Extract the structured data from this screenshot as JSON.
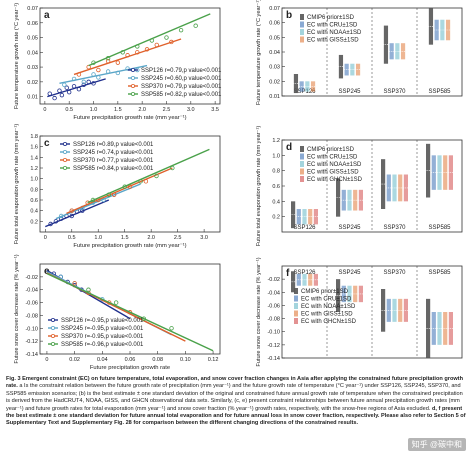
{
  "colors": {
    "ssp126": "#1f2f8c",
    "ssp245": "#5aa6c8",
    "ssp370": "#e0602a",
    "ssp585": "#4aa14a",
    "cmip6": "#555555",
    "cru": "#3a6fb5",
    "noaa": "#66b8c7",
    "giss": "#e07a3a",
    "ghcn": "#d14a4a"
  },
  "chart_data": [
    {
      "id": "a",
      "type": "scatter",
      "panel_label": "a",
      "ylabel": "Future temperature growth rate (°C year⁻¹)",
      "xlabel": "Future precipitation growth rate (mm year⁻¹)",
      "xlim": [
        -0.1,
        3.6
      ],
      "ylim": [
        0.005,
        0.07
      ],
      "xticks": [
        "0",
        "0.5",
        "1.0",
        "1.5",
        "2.0",
        "2.5",
        "3.0",
        "3.5"
      ],
      "yticks": [
        "0.01",
        "0.02",
        "0.03",
        "0.04",
        "0.05",
        "0.06",
        "0.07"
      ],
      "legend_placement": "bottom-right",
      "series": [
        {
          "name": "SSP126 r=0.79,p value<0.001",
          "color_key": "ssp126",
          "x": [
            0.1,
            0.2,
            0.3,
            0.35,
            0.45,
            0.5,
            0.6,
            0.7,
            0.8,
            0.9,
            1.0
          ],
          "y": [
            0.012,
            0.009,
            0.014,
            0.011,
            0.016,
            0.013,
            0.017,
            0.015,
            0.018,
            0.02,
            0.019
          ],
          "fit": [
            [
              0.05,
              0.01
            ],
            [
              1.25,
              0.022
            ]
          ]
        },
        {
          "name": "SSP245 r=0.60,p value<0.001",
          "color_key": "ssp245",
          "x": [
            0.4,
            0.6,
            0.8,
            1.0,
            1.1,
            1.3,
            1.5,
            1.7,
            1.9
          ],
          "y": [
            0.018,
            0.022,
            0.02,
            0.025,
            0.023,
            0.027,
            0.026,
            0.029,
            0.028
          ],
          "fit": [
            [
              0.3,
              0.019
            ],
            [
              2.1,
              0.031
            ]
          ]
        },
        {
          "name": "SSP370 r=0.79,p value<0.001",
          "color_key": "ssp370",
          "x": [
            0.7,
            0.9,
            1.1,
            1.3,
            1.5,
            1.7,
            1.9,
            2.1,
            2.3,
            2.6
          ],
          "y": [
            0.025,
            0.03,
            0.028,
            0.034,
            0.033,
            0.038,
            0.04,
            0.042,
            0.045,
            0.047
          ],
          "fit": [
            [
              0.6,
              0.025
            ],
            [
              2.8,
              0.049
            ]
          ]
        },
        {
          "name": "SSP585 r=0.82,p value<0.001",
          "color_key": "ssp585",
          "x": [
            1.0,
            1.3,
            1.6,
            1.9,
            2.2,
            2.5,
            2.8,
            3.1
          ],
          "y": [
            0.033,
            0.036,
            0.04,
            0.044,
            0.048,
            0.05,
            0.055,
            0.058
          ],
          "fit": [
            [
              0.9,
              0.031
            ],
            [
              3.4,
              0.066
            ]
          ]
        }
      ]
    },
    {
      "id": "b",
      "type": "errorbar",
      "panel_label": "b",
      "ylabel": "Future temperature growth rate (°C year⁻¹)",
      "categories": [
        "SSP126",
        "SSP245",
        "SSP370",
        "SSP585"
      ],
      "ylim": [
        0.01,
        0.07
      ],
      "yticks": [
        "0.01",
        "0.02",
        "0.03",
        "0.04",
        "0.05",
        "0.06",
        "0.07"
      ],
      "legend": [
        "CMIP6 prior±1SD",
        "EC with CRU±1SD",
        "EC with NOAA±1SD",
        "EC with GISS±1SD"
      ],
      "legend_color_keys": [
        "cmip6",
        "cru",
        "noaa",
        "giss"
      ],
      "bars": [
        [
          [
            0.012,
            0.025
          ],
          [
            0.013,
            0.02
          ],
          [
            0.013,
            0.02
          ],
          [
            0.013,
            0.02
          ]
        ],
        [
          [
            0.022,
            0.038
          ],
          [
            0.024,
            0.032
          ],
          [
            0.024,
            0.032
          ],
          [
            0.024,
            0.032
          ]
        ],
        [
          [
            0.032,
            0.058
          ],
          [
            0.035,
            0.046
          ],
          [
            0.035,
            0.046
          ],
          [
            0.035,
            0.046
          ]
        ],
        [
          [
            0.045,
            0.07
          ],
          [
            0.048,
            0.062
          ],
          [
            0.048,
            0.062
          ],
          [
            0.048,
            0.062
          ]
        ]
      ]
    },
    {
      "id": "c",
      "type": "scatter",
      "panel_label": "c",
      "ylabel": "Future total evaporation growth rate (mm year⁻¹)",
      "xlabel": "Future precipitation growth rate (mm year⁻¹)",
      "xlim": [
        -0.1,
        3.3
      ],
      "ylim": [
        0.0,
        1.8
      ],
      "xticks": [
        "0",
        "0.5",
        "1.0",
        "1.5",
        "2.0",
        "2.5",
        "3.0"
      ],
      "yticks": [
        "0.2",
        "0.4",
        "0.6",
        "0.8",
        "1.0",
        "1.2",
        "1.4",
        "1.6",
        "1.8"
      ],
      "legend_placement": "top-left",
      "series": [
        {
          "name": "SSP126 r=0.89,p value<0.001",
          "color_key": "ssp126",
          "x": [
            0.1,
            0.2,
            0.3,
            0.4,
            0.5,
            0.6,
            0.7
          ],
          "y": [
            0.15,
            0.2,
            0.25,
            0.3,
            0.3,
            0.38,
            0.4
          ],
          "fit": [
            [
              0.0,
              0.1
            ],
            [
              1.2,
              0.6
            ]
          ]
        },
        {
          "name": "SSP245 r=0.74,p value<0.001",
          "color_key": "ssp245",
          "x": [
            0.3,
            0.5,
            0.7,
            0.9,
            1.1,
            1.3
          ],
          "y": [
            0.3,
            0.4,
            0.45,
            0.55,
            0.6,
            0.7
          ],
          "fit": [
            [
              0.2,
              0.25
            ],
            [
              1.8,
              0.9
            ]
          ]
        },
        {
          "name": "SSP370 r=0.77,p value<0.001",
          "color_key": "ssp370",
          "x": [
            0.5,
            0.8,
            1.0,
            1.3,
            1.6,
            1.9
          ],
          "y": [
            0.4,
            0.55,
            0.6,
            0.7,
            0.85,
            0.95
          ],
          "fit": [
            [
              0.4,
              0.35
            ],
            [
              2.4,
              1.2
            ]
          ]
        },
        {
          "name": "SSP585 r=0.84,p value<0.001",
          "color_key": "ssp585",
          "x": [
            0.9,
            1.2,
            1.5,
            1.8,
            2.1,
            2.4
          ],
          "y": [
            0.6,
            0.7,
            0.85,
            0.95,
            1.05,
            1.2
          ],
          "fit": [
            [
              0.8,
              0.55
            ],
            [
              3.1,
              1.55
            ]
          ]
        }
      ]
    },
    {
      "id": "d",
      "type": "errorbar",
      "panel_label": "d",
      "ylabel": "Future total evaporation growth rate (mm year⁻¹)",
      "categories": [
        "SSP126",
        "SSP245",
        "SSP370",
        "SSP585"
      ],
      "ylim": [
        0.0,
        1.2
      ],
      "yticks": [
        "0.2",
        "0.4",
        "0.6",
        "0.8",
        "1.0",
        "1.2"
      ],
      "legend": [
        "CMIP6 prior±1SD",
        "EC with CRU±1SD",
        "EC with NOAA±1SD",
        "EC with GISS±1SD",
        "EC with GHCN±1SD"
      ],
      "legend_color_keys": [
        "cmip6",
        "cru",
        "noaa",
        "giss",
        "ghcn"
      ],
      "bars": [
        [
          [
            0.05,
            0.4
          ],
          [
            0.1,
            0.3
          ],
          [
            0.1,
            0.3
          ],
          [
            0.1,
            0.3
          ],
          [
            0.1,
            0.3
          ]
        ],
        [
          [
            0.2,
            0.7
          ],
          [
            0.28,
            0.55
          ],
          [
            0.28,
            0.55
          ],
          [
            0.28,
            0.55
          ],
          [
            0.28,
            0.55
          ]
        ],
        [
          [
            0.3,
            0.95
          ],
          [
            0.4,
            0.75
          ],
          [
            0.4,
            0.75
          ],
          [
            0.4,
            0.75
          ],
          [
            0.4,
            0.75
          ]
        ],
        [
          [
            0.45,
            1.15
          ],
          [
            0.55,
            1.0
          ],
          [
            0.55,
            1.0
          ],
          [
            0.55,
            1.0
          ],
          [
            0.55,
            1.0
          ]
        ]
      ]
    },
    {
      "id": "e",
      "type": "scatter",
      "panel_label": "e",
      "ylabel": "Future snow cover decrease rate (% year⁻¹)",
      "xlabel": "Future precipitation growth rate",
      "xlim": [
        -0.005,
        0.125
      ],
      "ylim": [
        -0.14,
        0.0
      ],
      "xticks": [
        "0",
        "0.02",
        "0.04",
        "0.06",
        "0.08",
        "0.10",
        "0.12"
      ],
      "yticks": [
        "-0.02",
        "-0.04",
        "-0.06",
        "-0.08",
        "-0.10",
        "-0.12",
        "-0.14"
      ],
      "legend_placement": "bottom-left",
      "series": [
        {
          "name": "SSP126 r=-0.95,p value<0.001",
          "color_key": "ssp126",
          "x": [
            0.005,
            0.01,
            0.015,
            0.02,
            0.025
          ],
          "y": [
            -0.015,
            -0.02,
            -0.028,
            -0.033,
            -0.04
          ],
          "fit": [
            [
              0.0,
              -0.01
            ],
            [
              0.06,
              -0.085
            ]
          ]
        },
        {
          "name": "SSP245 r=-0.95,p value<0.001",
          "color_key": "ssp245",
          "x": [
            0.01,
            0.02,
            0.03,
            0.04
          ],
          "y": [
            -0.02,
            -0.03,
            -0.045,
            -0.055
          ],
          "fit": [
            [
              0.0,
              -0.012
            ],
            [
              0.09,
              -0.11
            ]
          ]
        },
        {
          "name": "SSP370 r=-0.95,p value<0.001",
          "color_key": "ssp370",
          "x": [
            0.02,
            0.03,
            0.045,
            0.06
          ],
          "y": [
            -0.03,
            -0.045,
            -0.06,
            -0.075
          ],
          "fit": [
            [
              0.0,
              -0.014
            ],
            [
              0.1,
              -0.12
            ]
          ]
        },
        {
          "name": "SSP585 r=-0.96,p value<0.001",
          "color_key": "ssp585",
          "x": [
            0.03,
            0.05,
            0.07,
            0.09
          ],
          "y": [
            -0.04,
            -0.06,
            -0.085,
            -0.1
          ],
          "fit": [
            [
              0.0,
              -0.015
            ],
            [
              0.12,
              -0.135
            ]
          ]
        }
      ]
    },
    {
      "id": "f",
      "type": "errorbar",
      "panel_label": "f",
      "ylabel": "Future snow cover decrease rate (% year⁻¹)",
      "categories": [
        "SSP126",
        "SSP245",
        "SSP370",
        "SSP585"
      ],
      "ylim": [
        -0.14,
        0.0
      ],
      "yticks": [
        "-0.02",
        "-0.04",
        "-0.06",
        "-0.08",
        "-0.10",
        "-0.12",
        "-0.14"
      ],
      "legend": [
        "CMIP6 prior±1SD",
        "EC with CRU±1SD",
        "EC with NOAA±1SD",
        "EC with GISS±1SD",
        "EC with GHCN±1SD"
      ],
      "legend_color_keys": [
        "cmip6",
        "cru",
        "noaa",
        "giss",
        "ghcn"
      ],
      "bars": [
        [
          [
            -0.04,
            -0.008
          ],
          [
            -0.03,
            -0.012
          ],
          [
            -0.03,
            -0.012
          ],
          [
            -0.03,
            -0.012
          ],
          [
            -0.03,
            -0.012
          ]
        ],
        [
          [
            -0.07,
            -0.02
          ],
          [
            -0.055,
            -0.03
          ],
          [
            -0.055,
            -0.03
          ],
          [
            -0.055,
            -0.03
          ],
          [
            -0.055,
            -0.03
          ]
        ],
        [
          [
            -0.1,
            -0.035
          ],
          [
            -0.085,
            -0.05
          ],
          [
            -0.085,
            -0.05
          ],
          [
            -0.085,
            -0.05
          ],
          [
            -0.085,
            -0.05
          ]
        ],
        [
          [
            -0.14,
            -0.05
          ],
          [
            -0.12,
            -0.07
          ],
          [
            -0.12,
            -0.07
          ],
          [
            -0.12,
            -0.07
          ],
          [
            -0.12,
            -0.07
          ]
        ]
      ]
    }
  ],
  "caption": {
    "lead": "Fig. 3 Emergent constraint (EC) on future temperature, total evaporation, and snow cover fraction changes in Asia after applying the constrained future precipitation growth rate.",
    "body": "a Is the constraint relation between the future growth rate of precipitation (mm year⁻¹) and the future growth rate of temperature (°C year⁻¹) under SSP126, SSP245, SSP370, and SSP585 emission scenarios; (b) is the best estimate ± one standard deviation of the original and constrained future annual growth rate of temperature when the constrained precipitation is derived from the HadCRUT4, NOAA, GISS, and GHCN observational data sets. Similarly, (c, e) present constraint relationships between future annual precipitation growth rates (mm year⁻¹) and future growth rates for total evaporation (mm year⁻¹) and snow cover fraction (% year⁻¹) growth rates, respectively, with the snow-free regions of Asia excluded.",
    "tail": "d, f present the best estimate ± one standard deviation for future annual total evaporation and for future annual loss in snow cover fraction, respectively. Please also refer to Section 5 of Supplementary Text and Supplementary Fig. 28 for comparison between the different changing directions of the constrained results."
  },
  "watermark": "知乎 @碳中和"
}
